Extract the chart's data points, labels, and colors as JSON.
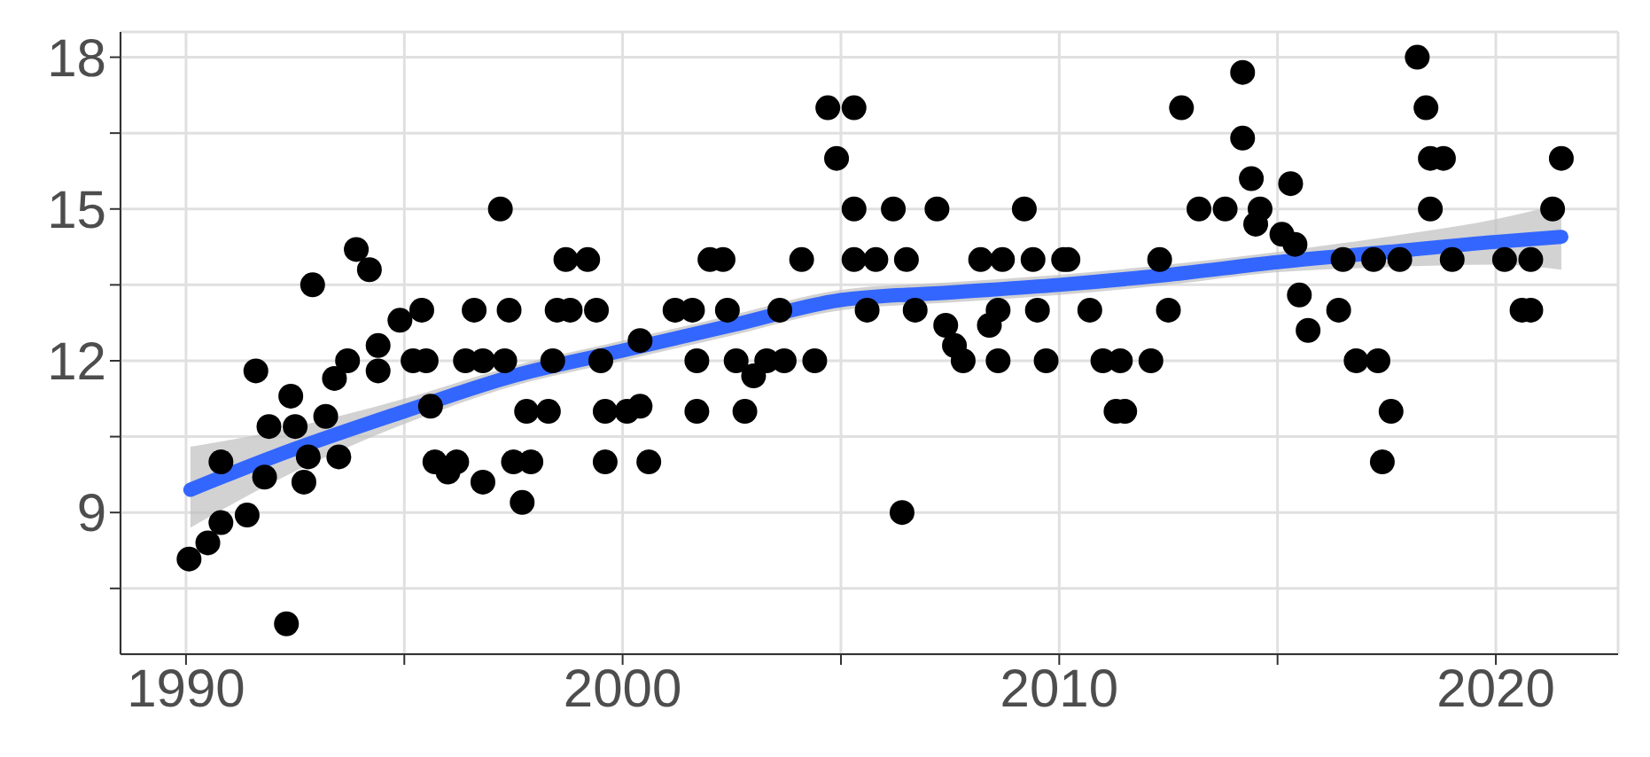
{
  "chart_data": {
    "type": "scatter",
    "xlim": [
      1988.5,
      2022.8
    ],
    "ylim": [
      6.2,
      18.5
    ],
    "xticks": [
      1990,
      {
        "value": 1995,
        "label": null
      },
      2000,
      {
        "value": 2005,
        "label": null
      },
      2010,
      {
        "value": 2015,
        "label": null
      },
      2020
    ],
    "yticks": [
      {
        "value": 7.5,
        "label": null
      },
      9,
      {
        "value": 10.5,
        "label": null
      },
      12,
      {
        "value": 13.5,
        "label": null
      },
      15,
      {
        "value": 16.5,
        "label": null
      },
      18
    ],
    "grid": true,
    "series": [
      {
        "marker": "circle",
        "color": "#000000",
        "x": [
          1990.07,
          1990.5,
          1990.8,
          1990.8,
          1991.4,
          1991.6,
          1991.8,
          1991.9,
          1992.4,
          1992.3,
          1992.5,
          1992.7,
          1992.8,
          1992.9,
          1993.2,
          1993.4,
          1993.5,
          1993.7,
          1993.9,
          1994.2,
          1994.4,
          1994.4,
          1994.9,
          1995.4,
          1995.2,
          1995.5,
          1995.6,
          1995.7,
          1996.0,
          1996.2,
          1996.4,
          1996.6,
          1996.8,
          1996.8,
          1997.3,
          1997.2,
          1997.4,
          1997.5,
          1997.7,
          1997.9,
          1997.8,
          1998.3,
          1998.4,
          1998.5,
          1998.7,
          1998.8,
          1999.2,
          1999.4,
          1999.5,
          1999.6,
          1999.6,
          2000.1,
          2000.4,
          2000.6,
          2000.4,
          2001.2,
          2001.6,
          2001.7,
          2001.7,
          2002.0,
          2002.3,
          2002.4,
          2002.6,
          2002.8,
          2003.0,
          2003.3,
          2003.7,
          2003.6,
          2004.1,
          2004.4,
          2004.7,
          2005.3,
          2004.9,
          2005.3,
          2005.3,
          2005.8,
          2005.6,
          2006.2,
          2006.4,
          2006.5,
          2006.7,
          2007.2,
          2007.4,
          2007.6,
          2007.8,
          2008.2,
          2008.4,
          2008.6,
          2008.7,
          2008.6,
          2009.2,
          2009.4,
          2009.5,
          2009.7,
          2010.1,
          2010.2,
          2010.7,
          2011.0,
          2011.4,
          2011.5,
          2011.3,
          2012.1,
          2012.3,
          2012.5,
          2012.8,
          2013.2,
          2013.8,
          2014.2,
          2014.2,
          2014.4,
          2014.6,
          2015.3,
          2014.5,
          2015.1,
          2015.4,
          2015.5,
          2015.7,
          2016.4,
          2016.5,
          2016.8,
          2017.3,
          2017.6,
          2017.4,
          2017.2,
          2017.8,
          2018.2,
          2018.4,
          2018.5,
          2018.8,
          2018.5,
          2019.0,
          2020.2,
          2020.8,
          2020.6,
          2020.8,
          2021.3,
          2021.5
        ],
        "values": [
          8.08,
          8.4,
          8.8,
          10.0,
          8.95,
          11.8,
          9.7,
          10.7,
          11.3,
          6.8,
          10.7,
          9.6,
          10.1,
          13.5,
          10.9,
          11.65,
          10.1,
          12.0,
          14.2,
          13.8,
          12.3,
          11.8,
          12.8,
          13.0,
          12.0,
          12.0,
          11.1,
          10.0,
          9.8,
          10.0,
          12.0,
          13.0,
          12.0,
          9.6,
          12.0,
          15.0,
          13.0,
          10.0,
          9.2,
          10.0,
          11.0,
          11.0,
          12.0,
          13.0,
          14.0,
          13.0,
          14.0,
          13.0,
          12.0,
          11.0,
          10.0,
          11.0,
          11.1,
          10.0,
          12.4,
          13.0,
          13.0,
          12.0,
          11.0,
          14.0,
          14.0,
          13.0,
          12.0,
          11.0,
          11.7,
          12.0,
          12.0,
          13.0,
          14.0,
          12.0,
          17.0,
          17.0,
          16.0,
          15.0,
          14.0,
          14.0,
          13.0,
          15.0,
          9.0,
          14.0,
          13.0,
          15.0,
          12.7,
          12.3,
          12.0,
          14.0,
          12.7,
          12.0,
          14.0,
          13.0,
          15.0,
          14.0,
          13.0,
          12.0,
          14.0,
          14.0,
          13.0,
          12.0,
          12.0,
          11.0,
          11.0,
          12.0,
          14.0,
          13.0,
          17.0,
          15.0,
          15.0,
          17.7,
          16.4,
          15.6,
          15.0,
          15.5,
          14.7,
          14.5,
          14.3,
          13.3,
          12.6,
          13.0,
          14.0,
          12.0,
          12.0,
          11.0,
          10.0,
          14.0,
          14.0,
          18.0,
          17.0,
          16.0,
          16.0,
          15.0,
          14.0,
          14.0,
          14.0,
          13.0,
          13.0,
          15.0,
          16.0
        ]
      },
      {
        "type": "line",
        "marker": "none",
        "color": "#3366ff",
        "line_style": "solid",
        "x": [
          1990.1,
          1992,
          1995,
          1997.5,
          2000,
          2002.5,
          2005,
          2007.5,
          2010,
          2012.5,
          2015,
          2017.5,
          2020,
          2021.5
        ],
        "values": [
          9.45,
          10.1,
          11.0,
          11.7,
          12.2,
          12.7,
          13.2,
          13.35,
          13.5,
          13.7,
          13.95,
          14.15,
          14.35,
          14.45
        ],
        "lower": [
          8.7,
          9.6,
          10.75,
          11.5,
          12.0,
          12.5,
          13.0,
          13.15,
          13.3,
          13.5,
          13.75,
          13.85,
          13.9,
          13.8
        ],
        "upper": [
          10.3,
          10.6,
          11.25,
          11.9,
          12.4,
          12.9,
          13.4,
          13.55,
          13.7,
          13.9,
          14.15,
          14.45,
          14.8,
          15.1
        ]
      }
    ]
  }
}
